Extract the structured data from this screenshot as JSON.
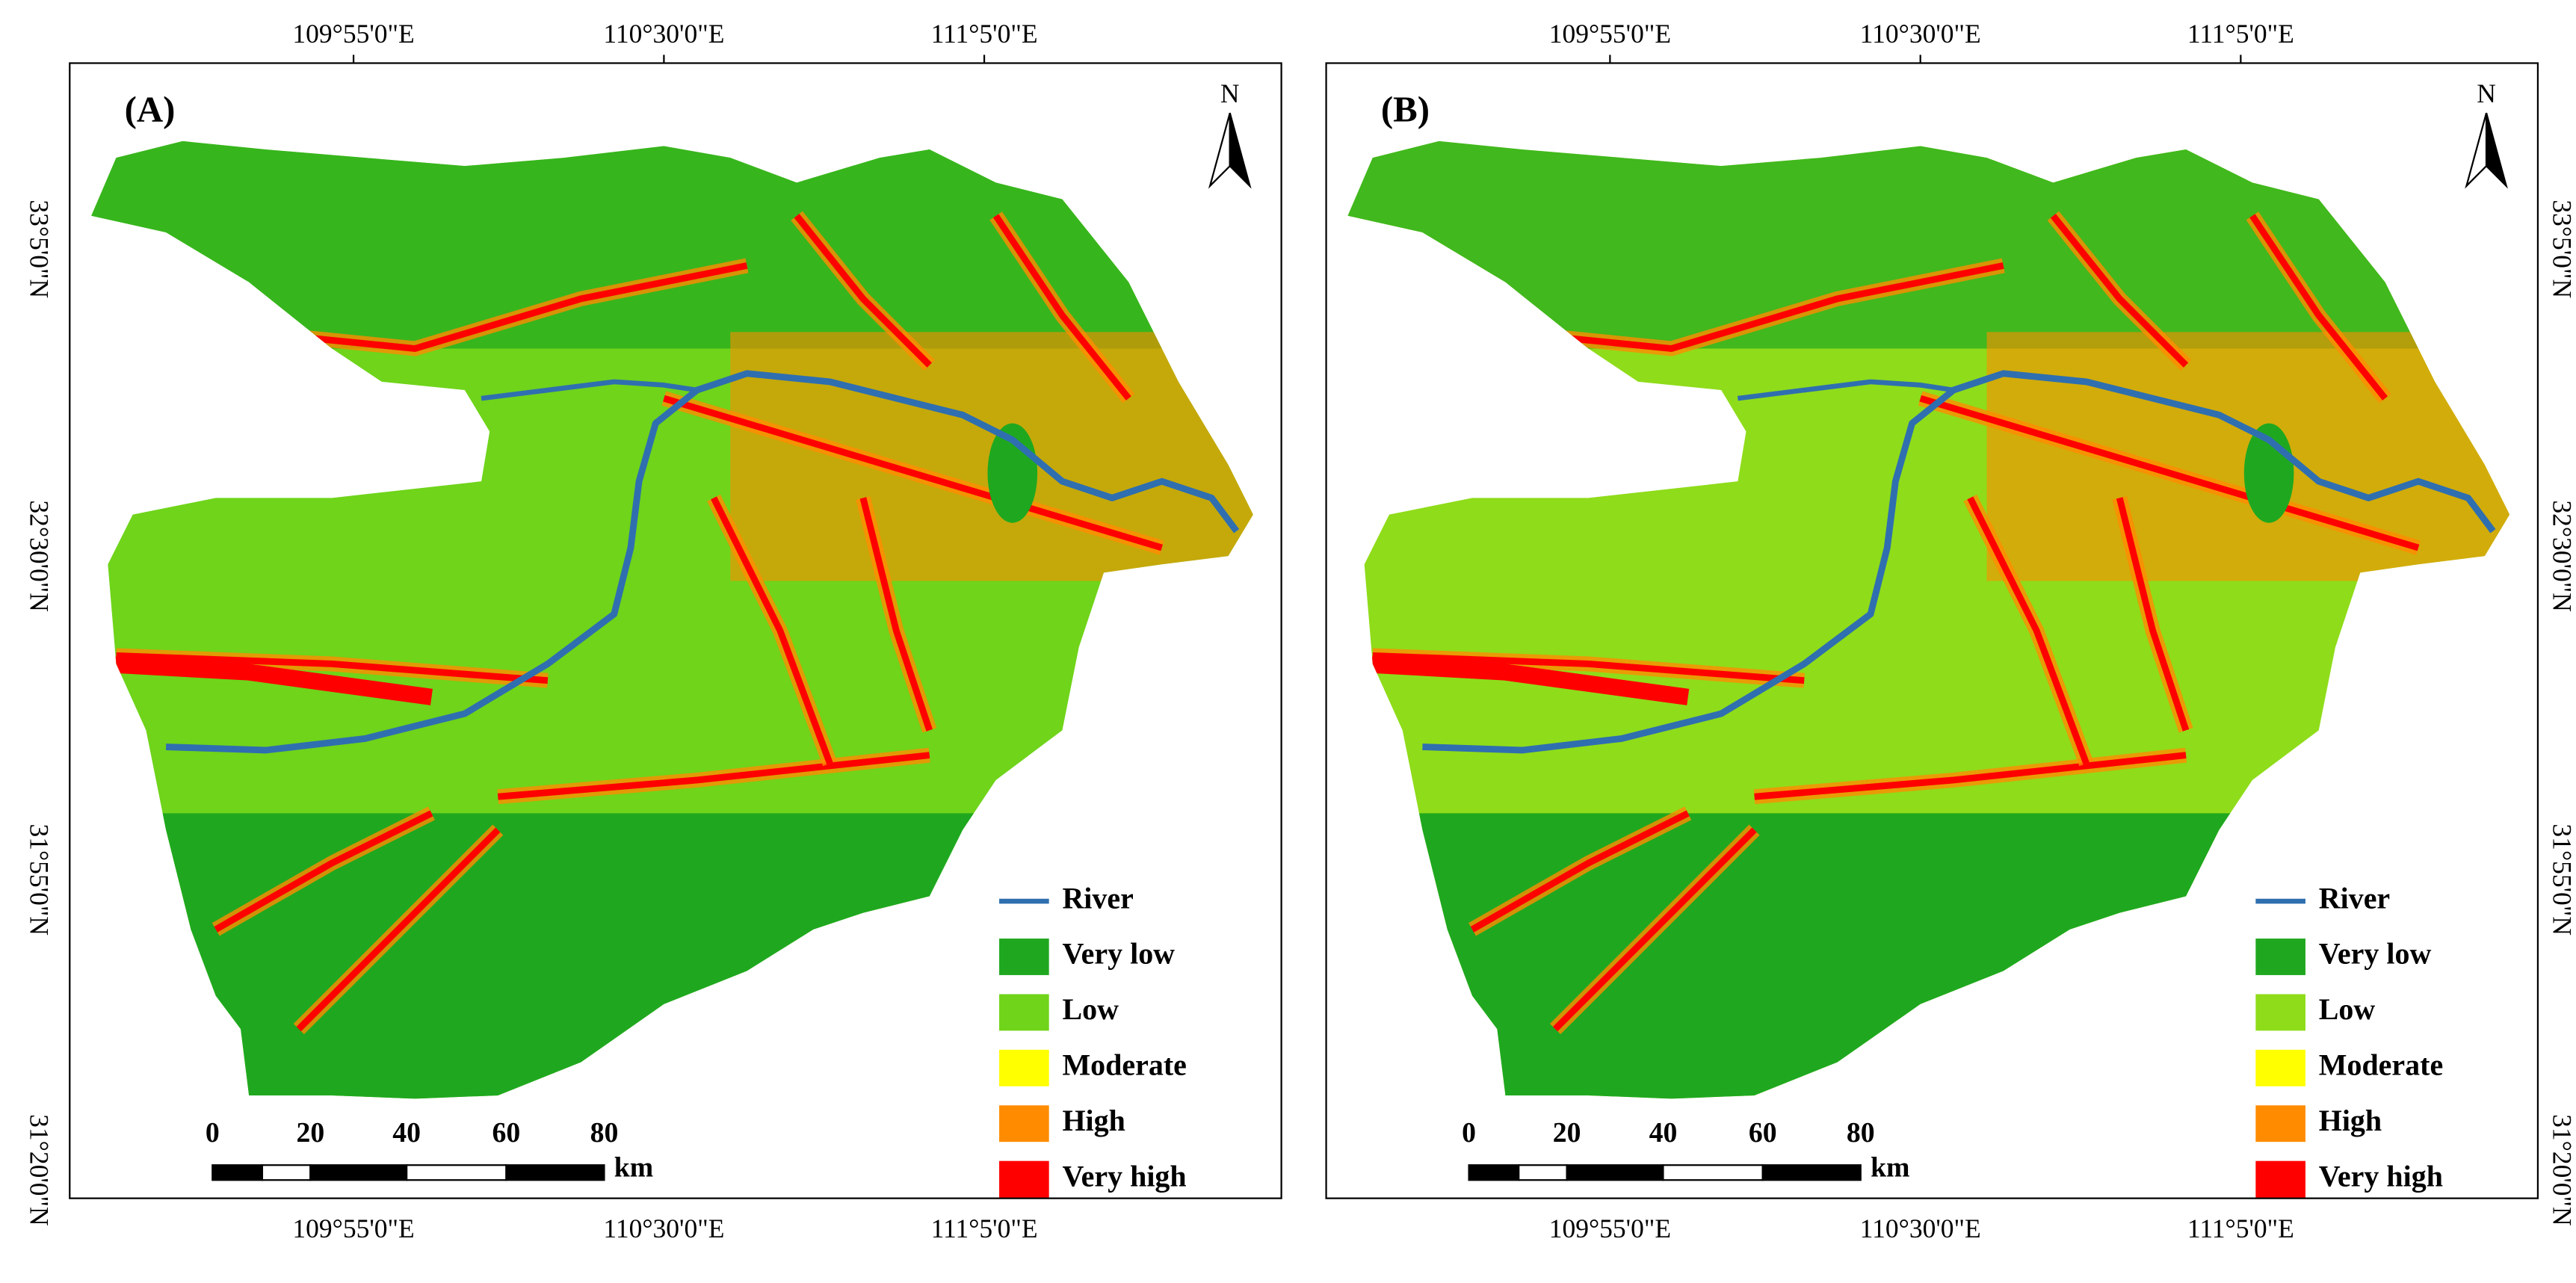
{
  "panels": [
    {
      "label": "(A)",
      "north": "N",
      "lon_labels": [
        "109°55'0\"E",
        "110°30'0\"E",
        "111°5'0\"E"
      ],
      "lat_labels": [
        "33°5'0\"N",
        "32°30'0\"N",
        "31°55'0\"N",
        "31°20'0\"N"
      ],
      "scale_bar": {
        "ticks": [
          "0",
          "20",
          "40",
          "60",
          "80"
        ],
        "unit": "km"
      },
      "legend": [
        {
          "label": "River",
          "color": "#2f6fb0"
        },
        {
          "label": "Very low",
          "color": "#1fa81f"
        },
        {
          "label": "Low",
          "color": "#6fd41a"
        },
        {
          "label": "Moderate",
          "color": "#ffff00"
        },
        {
          "label": "High",
          "color": "#ff8c00"
        },
        {
          "label": "Very high",
          "color": "#ff0000"
        }
      ]
    },
    {
      "label": "(B)",
      "north": "N",
      "lon_labels": [
        "109°55'0\"E",
        "110°30'0\"E",
        "111°5'0\"E"
      ],
      "lat_labels": [
        "33°5'0\"N",
        "32°30'0\"N",
        "31°55'0\"N",
        "31°20'0\"N"
      ],
      "scale_bar": {
        "ticks": [
          "0",
          "20",
          "40",
          "60",
          "80"
        ],
        "unit": "km"
      },
      "legend": [
        {
          "label": "River",
          "color": "#2f6fb0"
        },
        {
          "label": "Very low",
          "color": "#1fa81f"
        },
        {
          "label": "Low",
          "color": "#8fdc1a"
        },
        {
          "label": "Moderate",
          "color": "#ffff00"
        },
        {
          "label": "High",
          "color": "#ff8c00"
        },
        {
          "label": "Very high",
          "color": "#ff0000"
        }
      ]
    }
  ]
}
